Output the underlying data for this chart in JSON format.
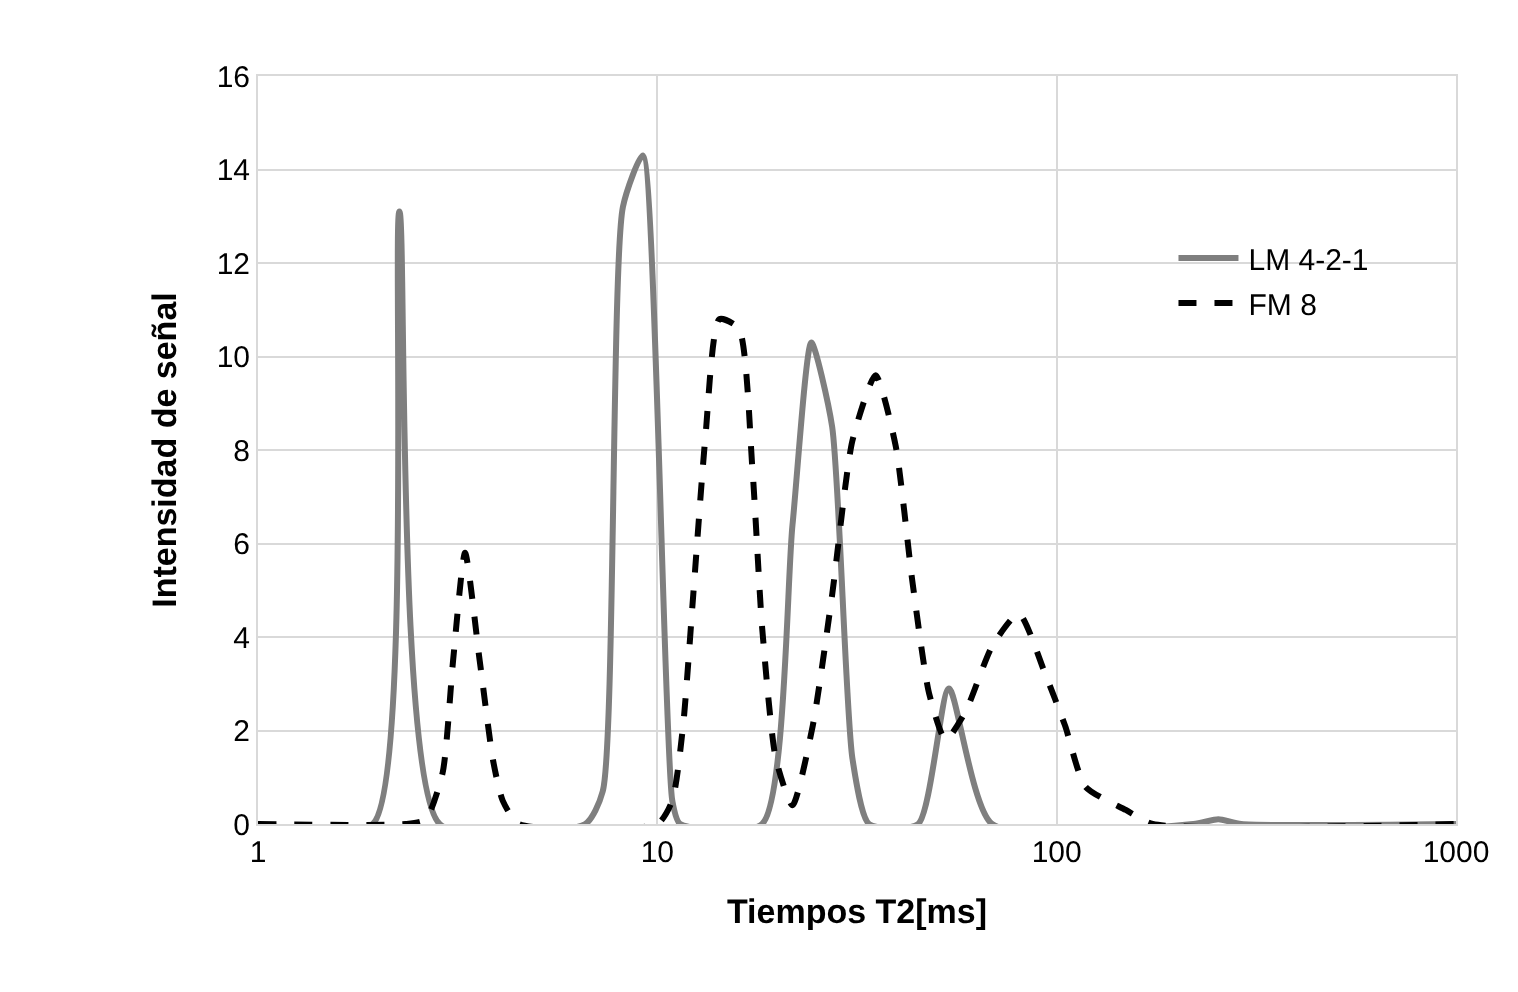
{
  "chart_data": {
    "type": "line",
    "xlabel": "Tiempos T2[ms]",
    "ylabel": "Intensidad de señal",
    "log": "x",
    "xlim": [
      1,
      1000
    ],
    "xticks": [
      1,
      10,
      100,
      1000
    ],
    "ylim": [
      0,
      16
    ],
    "yticks": [
      0,
      2,
      4,
      6,
      8,
      10,
      12,
      14,
      16
    ],
    "grid": true,
    "legend": "top right",
    "marker": "none",
    "series": [
      {
        "name": "LM 4-2-1",
        "color": "#7f7f7f",
        "line_style": "solid",
        "x": [
          1,
          1.94,
          2.26,
          2.85,
          6.6,
          7.3,
          8.2,
          9.2,
          10.9,
          11.4,
          18.3,
          21.8,
          24.3,
          27.4,
          30.8,
          33.9,
          45,
          53.7,
          68.9,
          220,
          254,
          290,
          1000
        ],
        "values": [
          0,
          0,
          13.1,
          0,
          0,
          0.7,
          13.2,
          14.3,
          0.5,
          0,
          0,
          6.4,
          10.3,
          8.5,
          1.4,
          0,
          0,
          2.9,
          0,
          0,
          0.1,
          0,
          0
        ]
      },
      {
        "name": "FM 8",
        "color": "#000000",
        "line_style": "dashed",
        "x": [
          1,
          2.34,
          2.63,
          2.9,
          3.08,
          3.3,
          3.59,
          3.88,
          4.1,
          4.5,
          10,
          10.9,
          11.6,
          12.3,
          13.2,
          14.3,
          16.0,
          17.3,
          18.3,
          19.8,
          21.8,
          24.5,
          27.4,
          30.8,
          35.2,
          39.5,
          43.5,
          47.9,
          52.7,
          59.1,
          68.9,
          80.4,
          93.7,
          105,
          118,
          149,
          174,
          1000
        ],
        "values": [
          0,
          0,
          0.1,
          1.1,
          3.5,
          5.8,
          3.5,
          1.35,
          0.5,
          0,
          0,
          0.5,
          2.1,
          4.9,
          8.3,
          10.8,
          10.6,
          7.6,
          4.2,
          1.4,
          0.4,
          2.1,
          4.9,
          8.2,
          9.6,
          8.1,
          5.2,
          2.8,
          1.8,
          2.4,
          3.8,
          4.5,
          3.2,
          2.1,
          0.8,
          0.3,
          0,
          0
        ]
      }
    ]
  }
}
